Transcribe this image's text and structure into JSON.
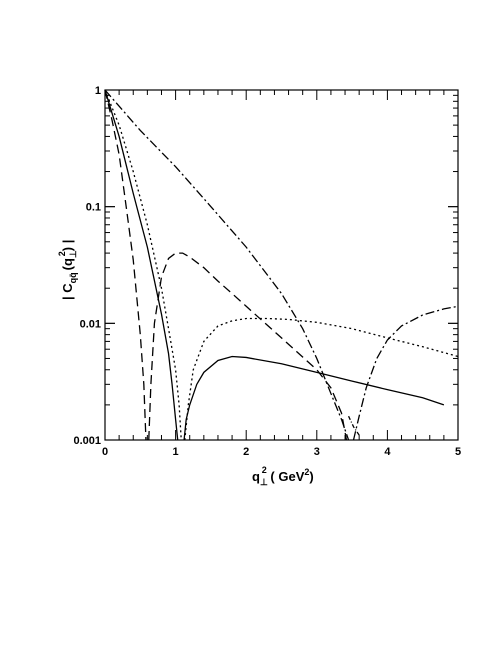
{
  "chart_data": {
    "type": "line",
    "title": "",
    "xlabel": {
      "main": "q",
      "sub": "⊥",
      "sup": "2",
      "units_open": " ( GeV",
      "units_sup": "2",
      "units_close": ")"
    },
    "ylabel": {
      "left": "| C",
      "sub": "qq̄",
      "mid": "(q",
      "mid_sub": "⊥",
      "mid_sup": "2",
      "right": ") |"
    },
    "xlim": [
      0,
      5
    ],
    "ylim": [
      0.001,
      1
    ],
    "yscale": "log",
    "grid": false,
    "legend": "none",
    "x_ticks": [
      "0",
      "1",
      "2",
      "3",
      "4",
      "5"
    ],
    "y_ticks": [
      "0.001",
      "0.01",
      "0.1",
      "1"
    ],
    "series": [
      {
        "style": "solid",
        "x": [
          0,
          0.2,
          0.4,
          0.6,
          0.8,
          0.9,
          0.95,
          1.0,
          1.03,
          null,
          1.12,
          1.15,
          1.2,
          1.3,
          1.4,
          1.6,
          1.8,
          2.0,
          2.5,
          3.0,
          3.5,
          4.0,
          4.5,
          4.8
        ],
        "y": [
          1,
          0.4,
          0.13,
          0.045,
          0.012,
          0.0055,
          0.003,
          0.0015,
          0.001,
          null,
          0.001,
          0.0015,
          0.002,
          0.003,
          0.0038,
          0.0048,
          0.0052,
          0.0051,
          0.0045,
          0.0038,
          0.0032,
          0.0027,
          0.0023,
          0.002
        ]
      },
      {
        "style": "dashed",
        "x": [
          0,
          0.1,
          0.2,
          0.3,
          0.4,
          0.5,
          0.55,
          0.58,
          null,
          0.62,
          0.65,
          0.7,
          0.8,
          0.9,
          1.0,
          1.1,
          1.2,
          1.4,
          1.6,
          1.8,
          2.0,
          2.5,
          3.0,
          3.2,
          3.35,
          3.42
        ],
        "y": [
          1,
          0.55,
          0.28,
          0.1,
          0.035,
          0.008,
          0.003,
          0.001,
          null,
          0.001,
          0.003,
          0.01,
          0.025,
          0.036,
          0.04,
          0.04,
          0.037,
          0.03,
          0.023,
          0.018,
          0.014,
          0.0075,
          0.004,
          0.0028,
          0.0017,
          0.001
        ]
      },
      {
        "style": "dotted",
        "x": [
          0,
          0.2,
          0.4,
          0.6,
          0.8,
          0.9,
          1.0,
          1.05,
          1.08,
          null,
          1.13,
          1.18,
          1.25,
          1.4,
          1.6,
          1.8,
          2.0,
          2.3,
          2.6,
          3.0,
          3.5,
          4.0,
          4.5,
          5.0
        ],
        "y": [
          1,
          0.5,
          0.2,
          0.07,
          0.02,
          0.009,
          0.004,
          0.002,
          0.001,
          null,
          0.001,
          0.002,
          0.004,
          0.007,
          0.0095,
          0.0105,
          0.011,
          0.011,
          0.0108,
          0.0102,
          0.009,
          0.0075,
          0.0063,
          0.0052
        ]
      },
      {
        "style": "dashdot",
        "x": [
          0,
          0.5,
          1.0,
          1.5,
          2.0,
          2.5,
          2.8,
          3.0,
          3.2,
          3.35,
          3.45,
          null,
          3.52,
          3.6,
          3.7,
          3.85,
          4.0,
          4.2,
          4.5,
          4.8,
          5.0
        ],
        "y": [
          1,
          0.45,
          0.22,
          0.1,
          0.045,
          0.018,
          0.009,
          0.005,
          0.0025,
          0.0015,
          0.001,
          null,
          0.001,
          0.0016,
          0.0028,
          0.005,
          0.0072,
          0.0095,
          0.0118,
          0.0133,
          0.014
        ]
      },
      {
        "style": "dashdot-short",
        "x": [
          3.45,
          3.52,
          3.6
        ],
        "y": [
          0.0016,
          0.0013,
          0.0011
        ]
      }
    ]
  }
}
